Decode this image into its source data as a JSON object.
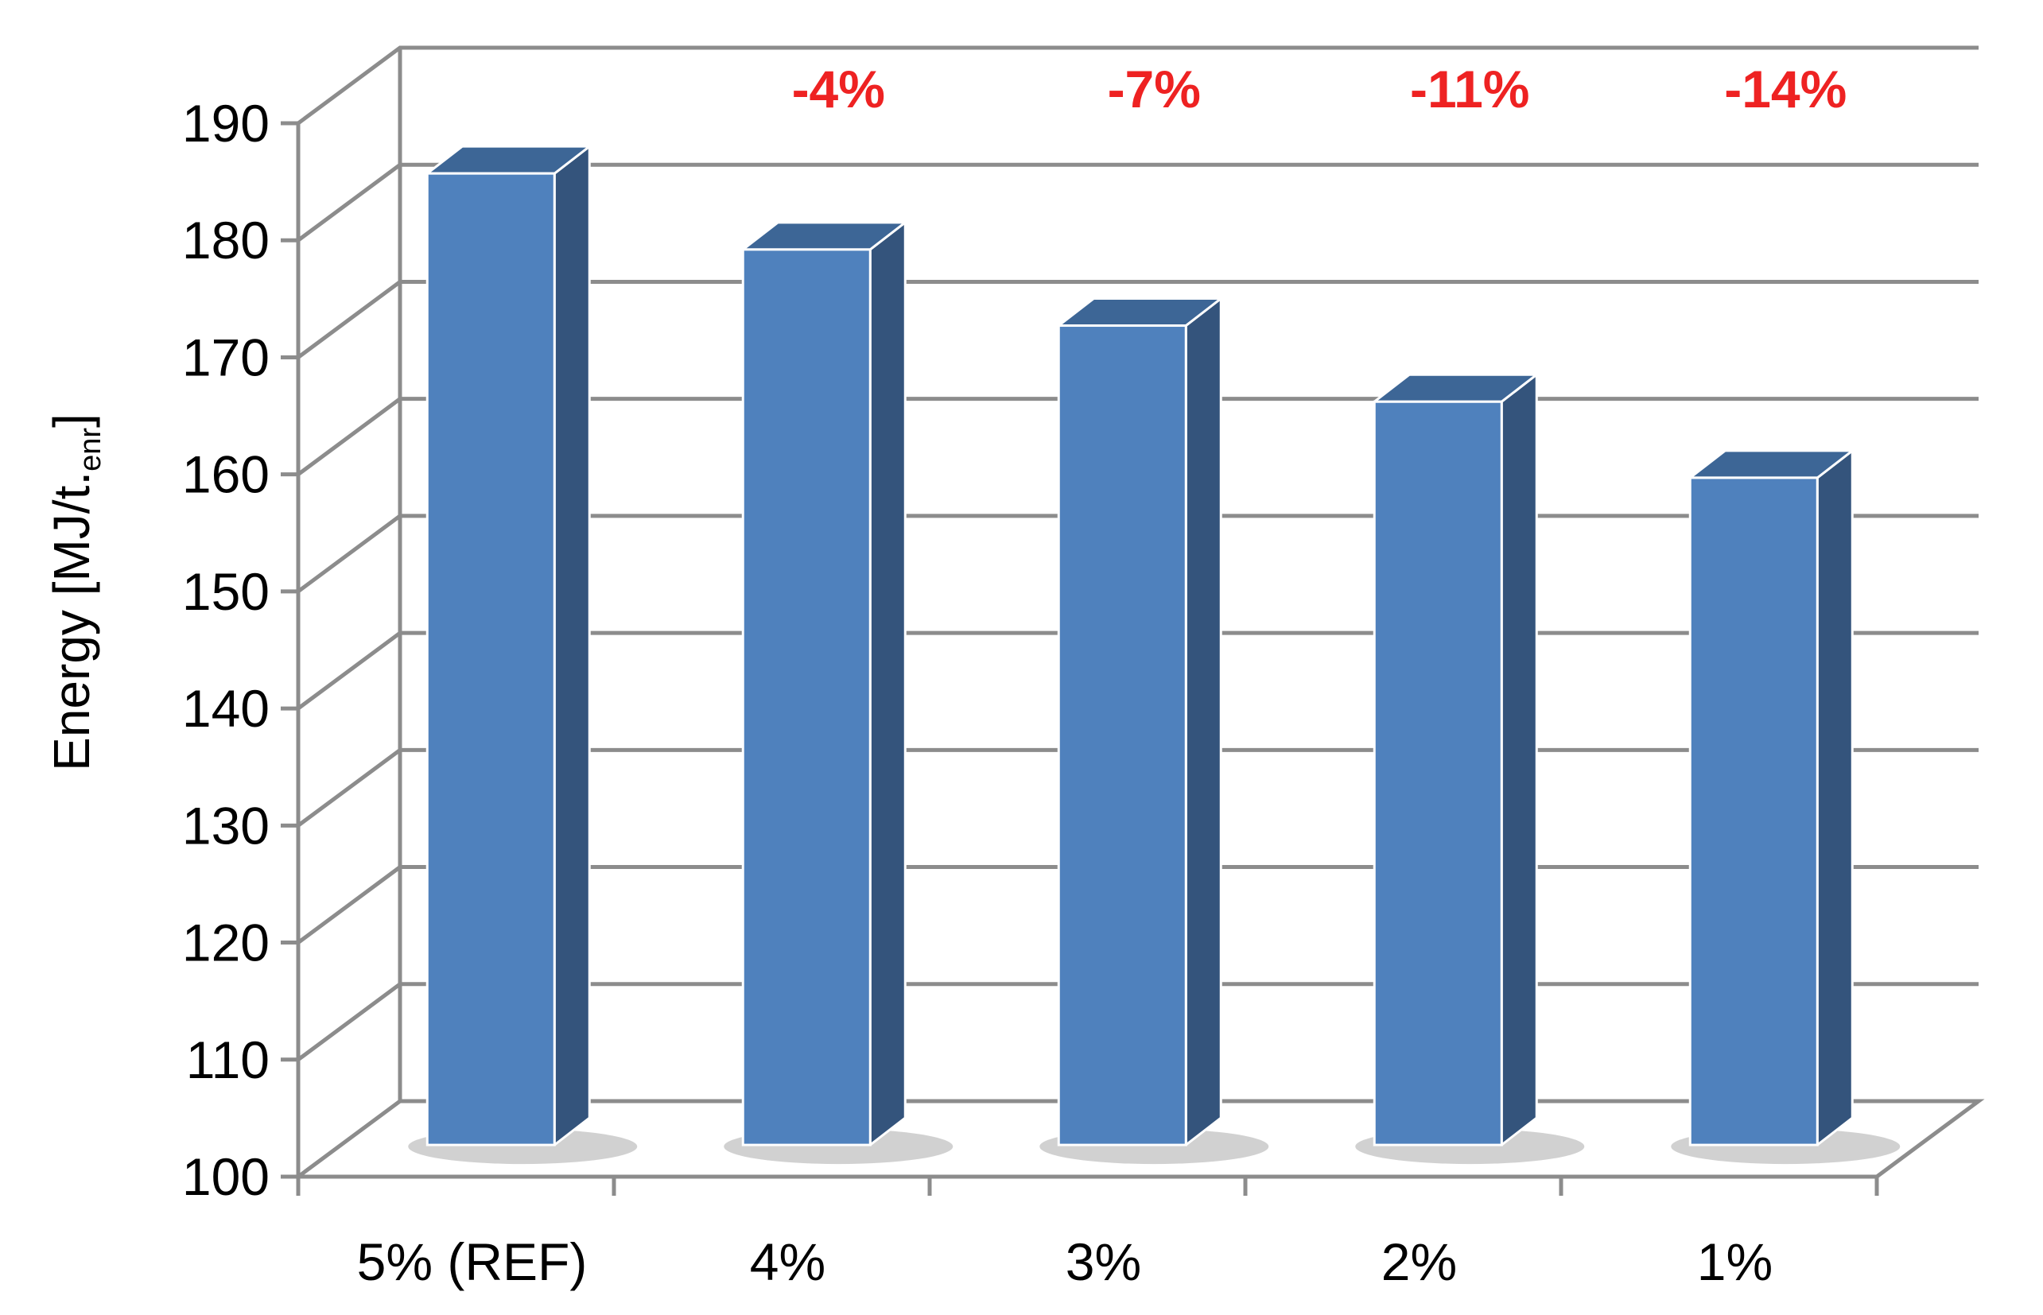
{
  "chart_data": {
    "type": "bar",
    "style": "3d",
    "categories": [
      "5% (REF)",
      "4%",
      "3%",
      "2%",
      "1%"
    ],
    "values": [
      183,
      176.5,
      170,
      163.5,
      157
    ],
    "annotations": [
      "",
      "-4%",
      "-7%",
      "-11%",
      "-14%"
    ],
    "ylabel": "Energy [MJ/t.",
    "ylabel_subscript": "enr",
    "ylabel_suffix": "]",
    "ylim": [
      100,
      190
    ],
    "yticks": [
      100,
      110,
      120,
      130,
      140,
      150,
      160,
      170,
      180,
      190
    ],
    "grid": true,
    "legend": "none"
  },
  "colors": {
    "bar_front": "#4f81bd",
    "bar_side": "#34547c",
    "bar_top": "#3d6696",
    "annotation": "#ee2222",
    "grid": "#8c8c8c"
  }
}
